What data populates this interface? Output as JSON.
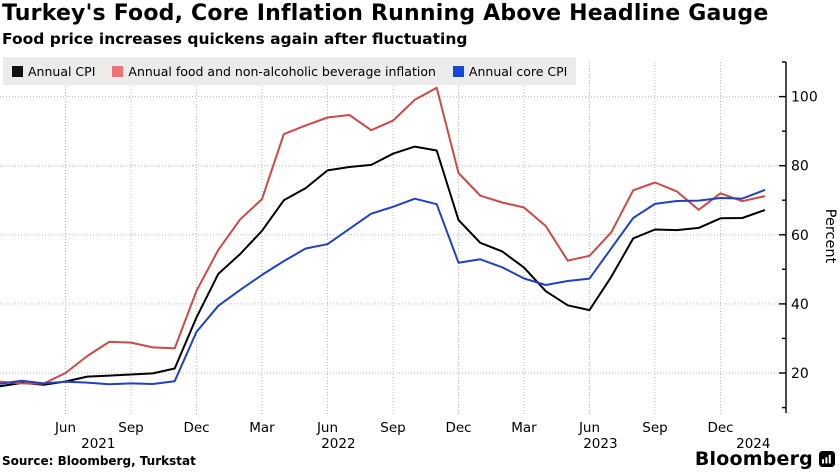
{
  "chart_data": {
    "type": "line",
    "title": "Turkey's Food, Core Inflation Running Above Headline Gauge",
    "subtitle": "Food price increases quickens again after fluctuating",
    "ylabel": "Percent",
    "source": "Source: Bloomberg, Turkstat",
    "brand": "Bloomberg",
    "ylim": [
      8,
      110
    ],
    "yticks_labeled": [
      20,
      40,
      60,
      80,
      100
    ],
    "yticks_minor": [
      10,
      30,
      50,
      70,
      90,
      110
    ],
    "grid": true,
    "legend_position": "top-left",
    "x_unit": "month",
    "x_tick_every": 3,
    "months": [
      "Mar 2021",
      "Apr 2021",
      "May 2021",
      "Jun 2021",
      "Jul 2021",
      "Aug 2021",
      "Sep 2021",
      "Oct 2021",
      "Nov 2021",
      "Dec 2021",
      "Jan 2022",
      "Feb 2022",
      "Mar 2022",
      "Apr 2022",
      "May 2022",
      "Jun 2022",
      "Jul 2022",
      "Aug 2022",
      "Sep 2022",
      "Oct 2022",
      "Nov 2022",
      "Dec 2022",
      "Jan 2023",
      "Feb 2023",
      "Mar 2023",
      "Apr 2023",
      "May 2023",
      "Jun 2023",
      "Jul 2023",
      "Aug 2023",
      "Sep 2023",
      "Oct 2023",
      "Nov 2023",
      "Dec 2023",
      "Jan 2024",
      "Feb 2024"
    ],
    "year_labels": [
      "2021",
      "2022",
      "2023",
      "2024"
    ],
    "series": [
      {
        "id": "cpi",
        "name": "Annual CPI",
        "color": "#000000",
        "swatch": "#111111",
        "values": [
          16.19,
          17.14,
          16.59,
          17.53,
          18.95,
          19.25,
          19.58,
          19.89,
          21.31,
          36.08,
          48.69,
          54.44,
          61.14,
          69.97,
          73.5,
          78.62,
          79.6,
          80.21,
          83.45,
          85.51,
          84.39,
          64.27,
          57.68,
          55.18,
          50.51,
          43.68,
          39.59,
          38.21,
          47.83,
          58.94,
          61.53,
          61.36,
          61.98,
          64.77,
          64.86,
          67.07
        ]
      },
      {
        "id": "food",
        "name": "Annual food and non-alcoholic beverage inflation",
        "color": "#c94a46",
        "swatch": "#ef7370",
        "values": [
          17.45,
          16.98,
          16.92,
          19.99,
          24.92,
          29.0,
          28.79,
          27.41,
          27.11,
          43.8,
          55.61,
          64.47,
          70.33,
          89.1,
          91.64,
          93.93,
          94.65,
          90.25,
          93.05,
          99.05,
          102.55,
          77.87,
          71.32,
          69.33,
          67.89,
          62.52,
          52.54,
          53.92,
          60.71,
          72.86,
          75.14,
          72.55,
          67.23,
          72.01,
          69.72,
          71.12
        ]
      },
      {
        "id": "core",
        "name": "Annual core CPI",
        "color": "#2042bd",
        "swatch": "#1148d8",
        "values": [
          16.88,
          17.77,
          16.99,
          17.47,
          17.22,
          16.76,
          16.98,
          16.82,
          17.62,
          31.88,
          39.45,
          44.05,
          48.39,
          52.37,
          56.04,
          57.26,
          61.69,
          66.09,
          68.09,
          70.45,
          68.86,
          51.93,
          52.89,
          50.58,
          47.36,
          45.48,
          46.63,
          47.33,
          56.09,
          64.86,
          68.93,
          69.76,
          69.89,
          70.64,
          70.48,
          72.89
        ]
      }
    ]
  }
}
